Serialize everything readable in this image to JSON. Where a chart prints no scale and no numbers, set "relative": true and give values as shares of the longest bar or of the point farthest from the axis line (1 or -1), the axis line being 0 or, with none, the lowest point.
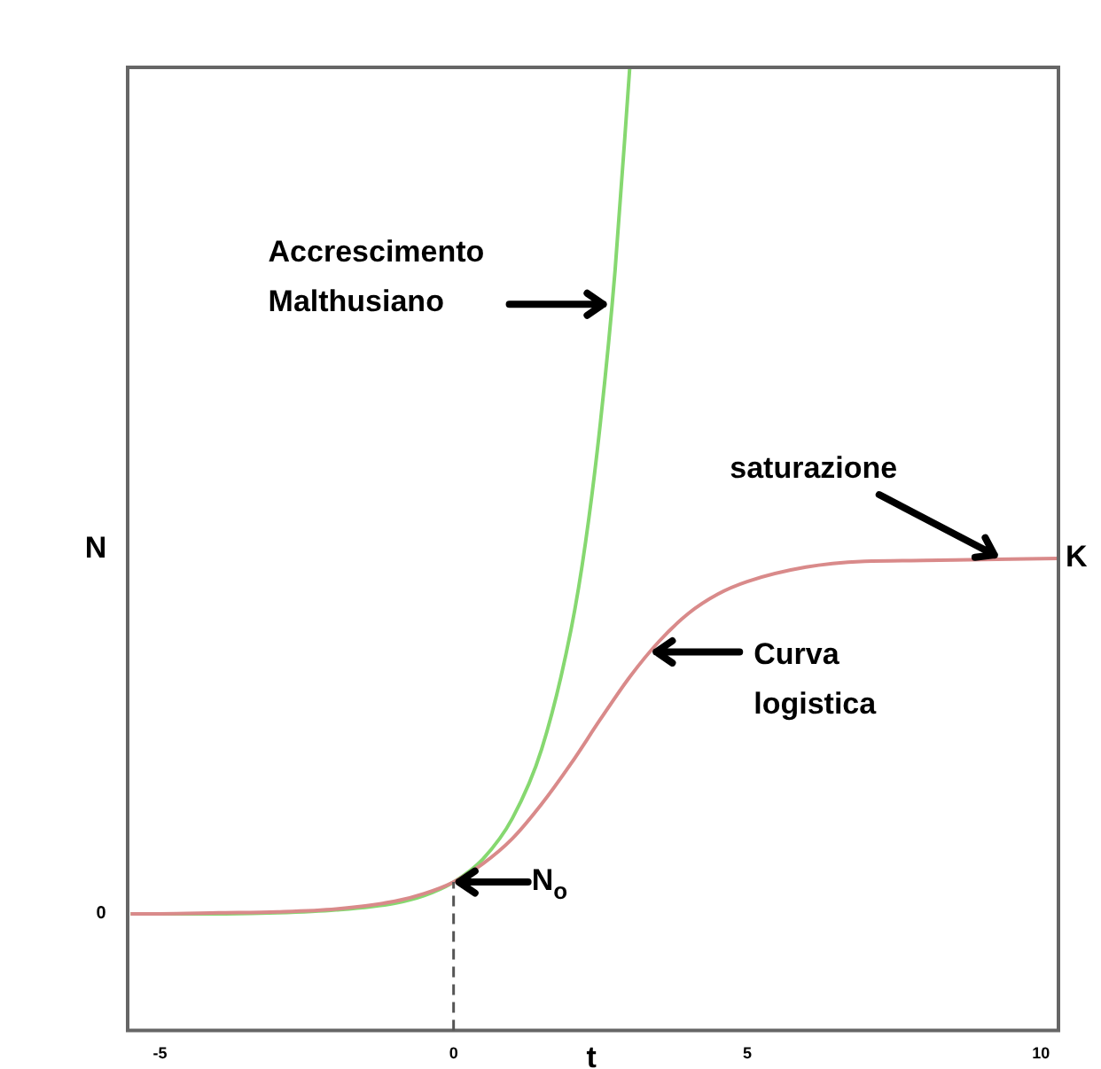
{
  "chart_data": {
    "type": "line",
    "relative": true,
    "xlabel": "t",
    "ylabel": "N",
    "xlim": [
      -5.55,
      10.3
    ],
    "xticks": [
      -5,
      0,
      5,
      10
    ],
    "legend": false,
    "marker": "none",
    "line_style": "solid",
    "series": [
      {
        "color": "#d98a8a",
        "x": [
          -5.5,
          -5,
          -4,
          -3,
          -2,
          -1,
          -0.5,
          0,
          0.5,
          1,
          1.5,
          2,
          2.5,
          3,
          3.5,
          4,
          4.5,
          5,
          6,
          7,
          8,
          9,
          10.3
        ],
        "values": [
          0.121,
          0.121,
          0.122,
          0.123,
          0.126,
          0.134,
          0.142,
          0.154,
          0.173,
          0.199,
          0.235,
          0.277,
          0.323,
          0.367,
          0.404,
          0.433,
          0.453,
          0.466,
          0.481,
          0.487,
          0.488,
          0.489,
          0.49
        ]
      },
      {
        "color": "#86d870",
        "x": [
          -5.5,
          -5,
          -4,
          -3,
          -2,
          -1,
          -0.5,
          0,
          0.5,
          1,
          1.5,
          2,
          2.25,
          2.5,
          2.75,
          3
        ],
        "values": [
          0.121,
          0.121,
          0.121,
          0.122,
          0.125,
          0.132,
          0.14,
          0.154,
          0.178,
          0.22,
          0.292,
          0.416,
          0.508,
          0.631,
          0.789,
          1
        ]
      }
    ],
    "ref_lines": [
      {
        "axis": "x",
        "value": 0,
        "line_style": "dashed",
        "color": "#555555"
      }
    ],
    "annotations": [
      {
        "text": "Accrescimento Malthusiano",
        "x": 2.64,
        "y": 0.754
      },
      {
        "text": "Curva logistica",
        "x": 3.36,
        "y": 0.393
      },
      {
        "text": "saturazione",
        "x": 9.3,
        "y": 0.49
      },
      {
        "text": "N$_{o}$",
        "x": 0,
        "y": 0.154
      },
      {
        "text": "K",
        "x": 10.3,
        "y": 0.49
      },
      "0"
    ]
  }
}
